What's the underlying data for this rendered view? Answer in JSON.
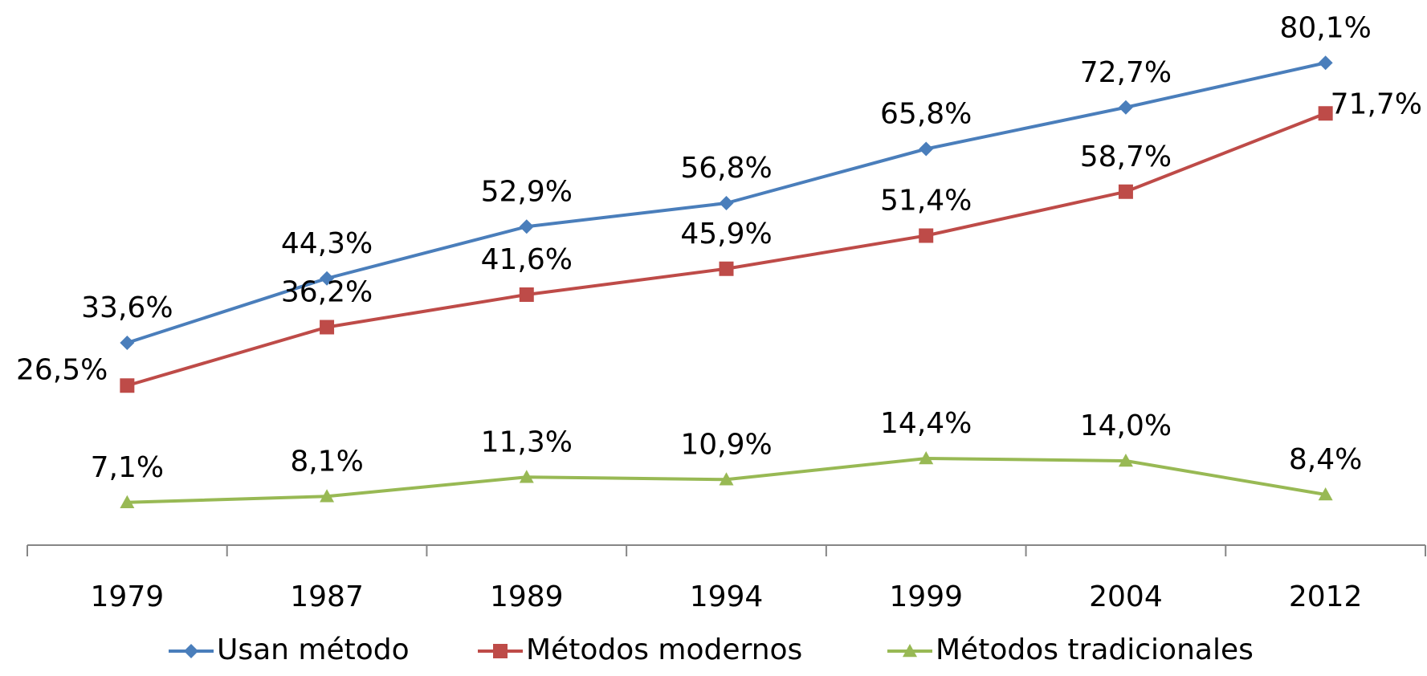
{
  "chart_data": {
    "type": "line",
    "categories": [
      "1979",
      "1987",
      "1989",
      "1994",
      "1999",
      "2004",
      "2012"
    ],
    "ylim": [
      0,
      90
    ],
    "series": [
      {
        "name": "Usan método",
        "color": "#4a7ebb",
        "marker": "diamond",
        "values": [
          33.6,
          44.3,
          52.9,
          56.8,
          65.8,
          72.7,
          80.1
        ],
        "value_labels": [
          "33,6%",
          "44,3%",
          "52,9%",
          "56,8%",
          "65,8%",
          "72,7%",
          "80,1%"
        ]
      },
      {
        "name": "Métodos modernos",
        "color": "#be4b48",
        "marker": "square",
        "values": [
          26.5,
          36.2,
          41.6,
          45.9,
          51.4,
          58.7,
          71.7
        ],
        "value_labels": [
          "26,5%",
          "36,2%",
          "41,6%",
          "45,9%",
          "51,4%",
          "58,7%",
          "71,7%"
        ]
      },
      {
        "name": "Métodos tradicionales",
        "color": "#98b954",
        "marker": "triangle",
        "values": [
          7.1,
          8.1,
          11.3,
          10.9,
          14.4,
          14.0,
          8.4
        ],
        "value_labels": [
          "7,1%",
          "8,1%",
          "11,3%",
          "10,9%",
          "14,4%",
          "14,0%",
          "8,4%"
        ]
      }
    ]
  }
}
